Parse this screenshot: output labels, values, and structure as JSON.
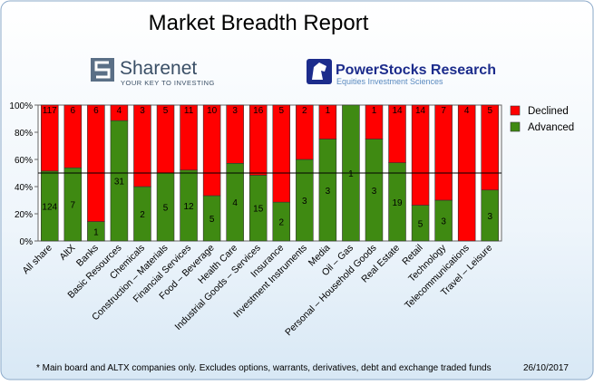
{
  "chart_data": {
    "type": "stacked_percent_bar",
    "title": "Market Breadth Report",
    "logos": [
      {
        "name": "Sharenet",
        "tagline": "YOUR KEY TO INVESTING"
      },
      {
        "name": "PowerStocks Research",
        "tagline": "Equities Investment Sciences"
      }
    ],
    "categories": [
      "All share",
      "AltX",
      "Banks",
      "Basic Resources",
      "Chemicals",
      "Construction – Materials",
      "Financial Services",
      "Food – Beverage",
      "Health Care",
      "Industrial Goods – Services",
      "Insurance",
      "Investment Instruments",
      "Media",
      "Oil – Gas",
      "Personal – Household Goods",
      "Real Estate",
      "Retail",
      "Technology",
      "Telecommunications",
      "Travel – Leisure"
    ],
    "series": [
      {
        "name": "Advanced",
        "color": "#3f8a12",
        "values": [
          124,
          7,
          1,
          31,
          2,
          5,
          12,
          5,
          4,
          15,
          2,
          3,
          3,
          1,
          3,
          19,
          5,
          3,
          0,
          3
        ]
      },
      {
        "name": "Declined",
        "color": "#ff0000",
        "values": [
          117,
          6,
          6,
          4,
          3,
          5,
          11,
          10,
          3,
          16,
          5,
          2,
          1,
          0,
          1,
          14,
          14,
          7,
          4,
          5
        ]
      }
    ],
    "ylim": [
      0,
      100
    ],
    "yticks": [
      {
        "value": 0,
        "label": "0%"
      },
      {
        "value": 20,
        "label": "20%"
      },
      {
        "value": 40,
        "label": "40%"
      },
      {
        "value": 60,
        "label": "60%"
      },
      {
        "value": 80,
        "label": "80%"
      },
      {
        "value": 100,
        "label": "100%"
      }
    ],
    "reference_line": 50,
    "legend": "right",
    "footnote": "* Main board and ALTX companies only. Excludes options, warrants, derivatives, debt and exchange traded funds",
    "date": "26/10/2017"
  }
}
